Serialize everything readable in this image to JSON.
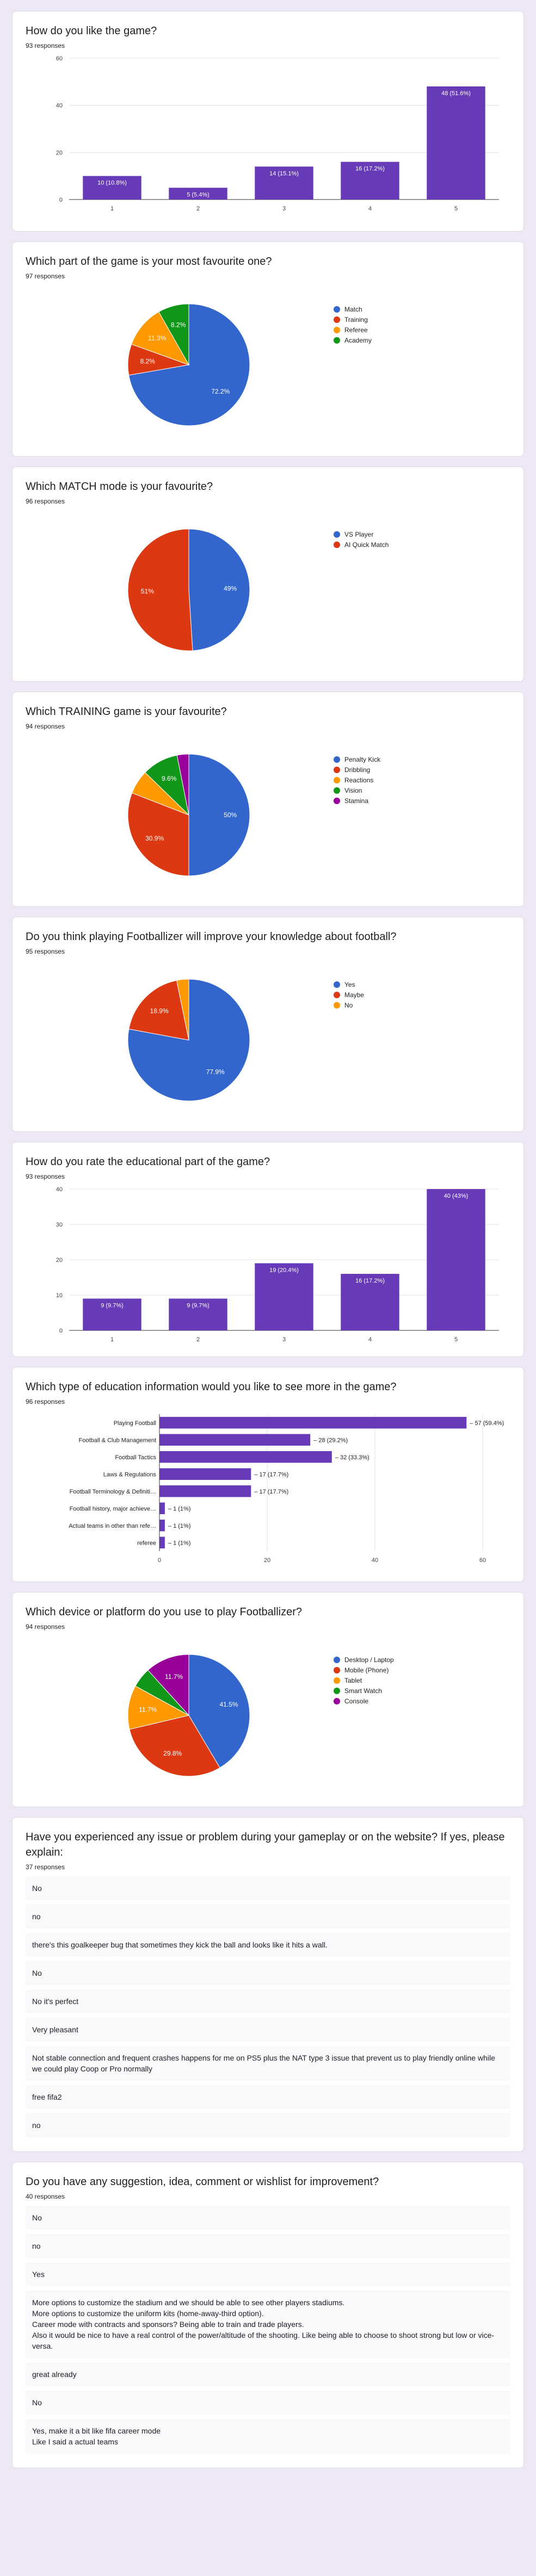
{
  "chart_data": [
    {
      "id": "c1",
      "type": "bar",
      "title": "How do you like the game?",
      "responses": "93 responses",
      "categories": [
        "1",
        "2",
        "3",
        "4",
        "5"
      ],
      "values": [
        10,
        5,
        14,
        16,
        48
      ],
      "labels": [
        "10 (10.8%)",
        "5 (5.4%)",
        "14 (15.1%)",
        "16 (17.2%)",
        "48 (51.6%)"
      ],
      "yticks": [
        0,
        20,
        40,
        60
      ],
      "ylim": [
        0,
        60
      ],
      "color": "#673ab7"
    },
    {
      "id": "c2",
      "type": "pie",
      "title": "Which part of the game is your most favourite one?",
      "responses": "97 responses",
      "slices": [
        {
          "name": "Match",
          "value": 72.2,
          "label": "72.2%",
          "color": "#3366cc"
        },
        {
          "name": "Training",
          "value": 8.2,
          "label": "8.2%",
          "color": "#dc3912"
        },
        {
          "name": "Referee",
          "value": 11.3,
          "label": "11.3%",
          "color": "#ff9900"
        },
        {
          "name": "Academy",
          "value": 8.2,
          "label": "8.2%",
          "color": "#109618"
        }
      ]
    },
    {
      "id": "c3",
      "type": "pie",
      "title": "Which MATCH mode is your favourite?",
      "responses": "96 responses",
      "slices": [
        {
          "name": "VS Player",
          "value": 49,
          "label": "49%",
          "color": "#3366cc"
        },
        {
          "name": "AI Quick Match",
          "value": 51,
          "label": "51%",
          "color": "#dc3912"
        }
      ]
    },
    {
      "id": "c4",
      "type": "pie",
      "title": "Which TRAINING game is your favourite?",
      "responses": "94 responses",
      "slices": [
        {
          "name": "Penalty Kick",
          "value": 50,
          "label": "50%",
          "color": "#3366cc"
        },
        {
          "name": "Dribbling",
          "value": 30.9,
          "label": "30.9%",
          "color": "#dc3912"
        },
        {
          "name": "Reactions",
          "value": 6.4,
          "label": "",
          "color": "#ff9900"
        },
        {
          "name": "Vision",
          "value": 9.6,
          "label": "9.6%",
          "color": "#109618"
        },
        {
          "name": "Stamina",
          "value": 3.1,
          "label": "",
          "color": "#990099"
        }
      ]
    },
    {
      "id": "c5",
      "type": "pie",
      "title": "Do you think playing Footballizer will improve your knowledge about football?",
      "responses": "95 responses",
      "slices": [
        {
          "name": "Yes",
          "value": 77.9,
          "label": "77.9%",
          "color": "#3366cc"
        },
        {
          "name": "Maybe",
          "value": 18.9,
          "label": "18.9%",
          "color": "#dc3912"
        },
        {
          "name": "No",
          "value": 3.2,
          "label": "",
          "color": "#ff9900"
        }
      ]
    },
    {
      "id": "c6",
      "type": "bar",
      "title": "How do you rate the educational part of the game?",
      "responses": "93 responses",
      "categories": [
        "1",
        "2",
        "3",
        "4",
        "5"
      ],
      "values": [
        9,
        9,
        19,
        16,
        40
      ],
      "labels": [
        "9 (9.7%)",
        "9 (9.7%)",
        "19 (20.4%)",
        "16 (17.2%)",
        "40 (43%)"
      ],
      "yticks": [
        0,
        10,
        20,
        30,
        40
      ],
      "ylim": [
        0,
        40
      ],
      "color": "#673ab7"
    },
    {
      "id": "c7",
      "type": "hbar",
      "title": "Which type of education information would you like to see more in the game?",
      "responses": "96 responses",
      "categories": [
        "Playing Football",
        "Football & Club Management",
        "Football Tactics",
        "Laws & Regulations",
        "Football Terminology & Definiti…",
        "Football history, major achieve…",
        "Actual teams in other than refe…",
        "referee"
      ],
      "values": [
        57,
        28,
        32,
        17,
        17,
        1,
        1,
        1
      ],
      "labels": [
        "57 (59.4%)",
        "28 (29.2%)",
        "32 (33.3%)",
        "17 (17.7%)",
        "17 (17.7%)",
        "1 (1%)",
        "1 (1%)",
        "1 (1%)"
      ],
      "xticks": [
        0,
        20,
        40,
        60
      ],
      "xlim": [
        0,
        60
      ],
      "color": "#673ab7"
    },
    {
      "id": "c8",
      "type": "pie",
      "title": "Which device or platform do you use to play Footballizer?",
      "responses": "94 responses",
      "slices": [
        {
          "name": "Desktop / Laptop",
          "value": 41.5,
          "label": "41.5%",
          "color": "#3366cc"
        },
        {
          "name": "Mobile (Phone)",
          "value": 29.8,
          "label": "29.8%",
          "color": "#dc3912"
        },
        {
          "name": "Tablet",
          "value": 11.7,
          "label": "11.7%",
          "color": "#ff9900"
        },
        {
          "name": "Smart Watch",
          "value": 5.3,
          "label": "",
          "color": "#109618"
        },
        {
          "name": "Console",
          "value": 11.7,
          "label": "11.7%",
          "color": "#990099"
        }
      ]
    }
  ],
  "text_questions": [
    {
      "title": "Have you experienced any issue or problem during your gameplay or on the website? If yes, please explain:",
      "responses": "37 responses",
      "answers": [
        "No",
        "no",
        "there's this goalkeeper bug that sometimes they kick the ball and looks like it hits a wall.",
        "No",
        "No it's perfect",
        "Very pleasant",
        "Not stable connection and frequent crashes happens for me on PS5 plus the NAT type 3 issue that prevent us to play friendly online while we could play Coop or Pro normally",
        "free fifa2",
        "no"
      ]
    },
    {
      "title": "Do you have any suggestion, idea, comment or wishlist for improvement?",
      "responses": "40 responses",
      "answers": [
        "No",
        "no",
        "Yes",
        "More options to customize the stadium and we should be able to see other players stadiums.\nMore options to customize the uniform kits (home-away-third option).\nCareer mode with contracts and sponsors? Being able to train and trade players.\nAlso it would be nice to have a real control of the power/altitude of the shooting. Like being able to choose to shoot strong but low or vice-versa.",
        "great already",
        "No",
        "Yes, make it a bit like fifa career mode\nLike I said a actual teams"
      ]
    }
  ]
}
